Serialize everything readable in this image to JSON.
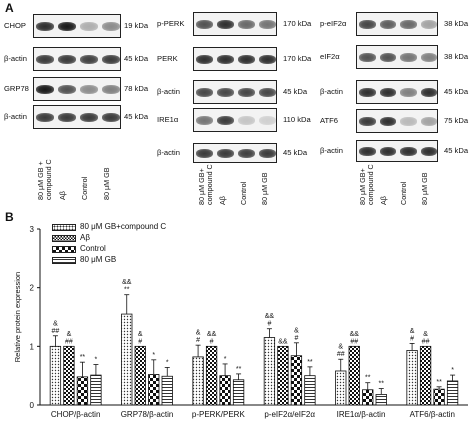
{
  "panel_a": {
    "letter": "A",
    "blots": [
      {
        "label": "CHOP",
        "kda": "19 kDa",
        "bands": [
          0.85,
          0.95,
          0.3,
          0.45
        ]
      },
      {
        "label": "β-actin",
        "kda": "45 kDa",
        "bands": [
          0.8,
          0.8,
          0.78,
          0.8
        ]
      },
      {
        "label": "GRP78",
        "kda": "78 kDa",
        "bands": [
          0.95,
          0.7,
          0.45,
          0.5
        ]
      },
      {
        "label": "β-actin",
        "kda": "45 kDa",
        "bands": [
          0.8,
          0.8,
          0.8,
          0.8
        ]
      },
      {
        "label": "p-PERK",
        "kda": "170 kDa",
        "bands": [
          0.7,
          0.85,
          0.6,
          0.55
        ]
      },
      {
        "label": "PERK",
        "kda": "170 kDa",
        "bands": [
          0.85,
          0.85,
          0.85,
          0.85
        ]
      },
      {
        "label": "β-actin",
        "kda": "45 kDa",
        "bands": [
          0.75,
          0.75,
          0.75,
          0.75
        ]
      },
      {
        "label": "IRE1α",
        "kda": "110 kDa",
        "bands": [
          0.55,
          0.8,
          0.2,
          0.15
        ]
      },
      {
        "label": "β-actin",
        "kda": "45 kDa",
        "bands": [
          0.8,
          0.8,
          0.78,
          0.8
        ]
      },
      {
        "label": "p-eIF2α",
        "kda": "38 kDa",
        "bands": [
          0.75,
          0.65,
          0.6,
          0.35
        ]
      },
      {
        "label": "eIF2α",
        "kda": "38 kDa",
        "bands": [
          0.7,
          0.7,
          0.55,
          0.5
        ]
      },
      {
        "label": "β-actin",
        "kda": "45 kDa",
        "bands": [
          0.85,
          0.85,
          0.5,
          0.85
        ]
      },
      {
        "label": "ATF6",
        "kda": "75 kDa",
        "bands": [
          0.8,
          0.85,
          0.25,
          0.35
        ]
      },
      {
        "label": "β-actin",
        "kda": "45 kDa",
        "bands": [
          0.85,
          0.85,
          0.85,
          0.85
        ]
      }
    ],
    "lane_labels": [
      "80 μM GB +\ncompound C",
      "Aβ",
      "Control",
      "80 μM GB"
    ],
    "lane_labels_mid": [
      "80 μM GB+\ncompound C",
      "Aβ",
      "Control",
      "80 μM GB"
    ],
    "lane_labels_right": [
      "80 μM GB+\ncompound C",
      "Aβ",
      "Control",
      "80 μM GB"
    ]
  },
  "panel_b": {
    "letter": "B",
    "legend": [
      "80 μM GB+compound C",
      "Aβ",
      "Control",
      "80 μM GB"
    ]
  },
  "chart_data": {
    "type": "bar",
    "categories": [
      "CHOP/β-actin",
      "GRP78/β-actin",
      "p-PERK/PERK",
      "p-eIF2α/eIF2α",
      "IRE1α/β-actin",
      "ATF6/β-actin"
    ],
    "series": [
      {
        "name": "80 μM GB+compound C",
        "values": [
          1.0,
          1.55,
          0.82,
          1.15,
          0.58,
          0.93
        ],
        "errors": [
          0.18,
          0.33,
          0.2,
          0.15,
          0.2,
          0.12
        ]
      },
      {
        "name": "Aβ",
        "values": [
          1.0,
          1.0,
          1.0,
          1.0,
          1.0,
          1.0
        ],
        "errors": [
          0.0,
          0.0,
          0.0,
          0.0,
          0.0,
          0.0
        ]
      },
      {
        "name": "Control",
        "values": [
          0.48,
          0.52,
          0.5,
          0.84,
          0.26,
          0.27
        ],
        "errors": [
          0.25,
          0.25,
          0.2,
          0.22,
          0.12,
          0.04
        ]
      },
      {
        "name": "80 μM GB",
        "values": [
          0.51,
          0.49,
          0.43,
          0.5,
          0.18,
          0.41
        ],
        "errors": [
          0.18,
          0.15,
          0.1,
          0.15,
          0.1,
          0.1
        ]
      }
    ],
    "annotations": [
      [
        "&\n##",
        "&\n##",
        "**",
        "*"
      ],
      [
        "&&\n**",
        "&\n#",
        "*",
        "*"
      ],
      [
        "&\n#",
        "&&\n#",
        "*",
        "**"
      ],
      [
        "&&\n#",
        "&&",
        "&\n#",
        "**"
      ],
      [
        "&\n##",
        "&&\n##",
        "**",
        "**"
      ],
      [
        "&\n#",
        "&\n##",
        "**",
        "*"
      ]
    ],
    "ylabel": "Relative protein expression",
    "xlabel": "",
    "ylim": [
      0,
      3
    ],
    "yticks": [
      "0",
      "1",
      "2",
      "3"
    ],
    "grid": false,
    "legend_position": "top-left"
  }
}
